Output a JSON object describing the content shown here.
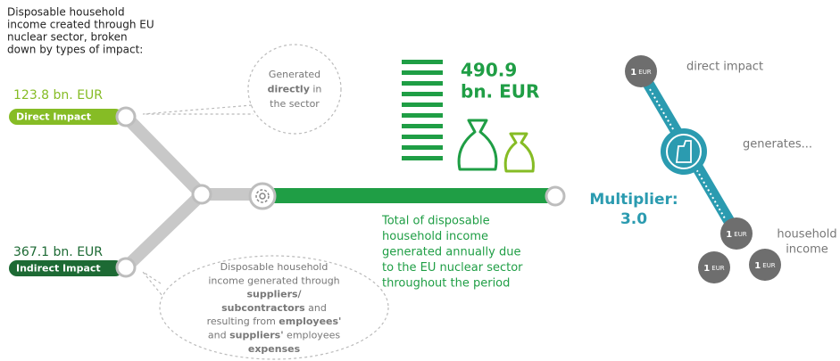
{
  "intro": [
    "Disposable household",
    "income created through EU",
    "nuclear sector, broken",
    "down by types of impact:"
  ],
  "direct": {
    "value": "123.8 bn. EUR",
    "label": "Direct Impact",
    "bubble": [
      [
        {
          "text": "Generated",
          "bold": false
        }
      ],
      [
        {
          "text": "directly",
          "bold": true
        },
        {
          "text": " in",
          "bold": false
        }
      ],
      [
        {
          "text": "the sector",
          "bold": false
        }
      ]
    ]
  },
  "indirect": {
    "value": "367.1 bn. EUR",
    "label": "Indirect Impact",
    "bubble": [
      [
        {
          "text": "Disposable household",
          "bold": false
        }
      ],
      [
        {
          "text": "income generated through",
          "bold": false
        }
      ],
      [
        {
          "text": "suppliers/",
          "bold": true
        }
      ],
      [
        {
          "text": "subcontractors",
          "bold": true
        },
        {
          "text": " and",
          "bold": false
        }
      ],
      [
        {
          "text": "resulting from ",
          "bold": false
        },
        {
          "text": "employees'",
          "bold": true
        }
      ],
      [
        {
          "text": "and ",
          "bold": false
        },
        {
          "text": "suppliers'",
          "bold": true
        },
        {
          "text": " employees",
          "bold": false
        }
      ],
      [
        {
          "text": "expenses",
          "bold": true
        }
      ]
    ]
  },
  "total": {
    "value": [
      "490.9",
      "bn. EUR"
    ],
    "description": [
      "Total of disposable",
      "household income",
      "generated annually due",
      "to the EU nuclear sector",
      "throughout the period"
    ]
  },
  "multiplier": {
    "label": "Multiplier:",
    "value": "3.0",
    "start": "direct impact",
    "middle": "generates...",
    "end": [
      "household",
      "income"
    ],
    "coin": {
      "amount": "1",
      "unit": "EUR"
    }
  }
}
